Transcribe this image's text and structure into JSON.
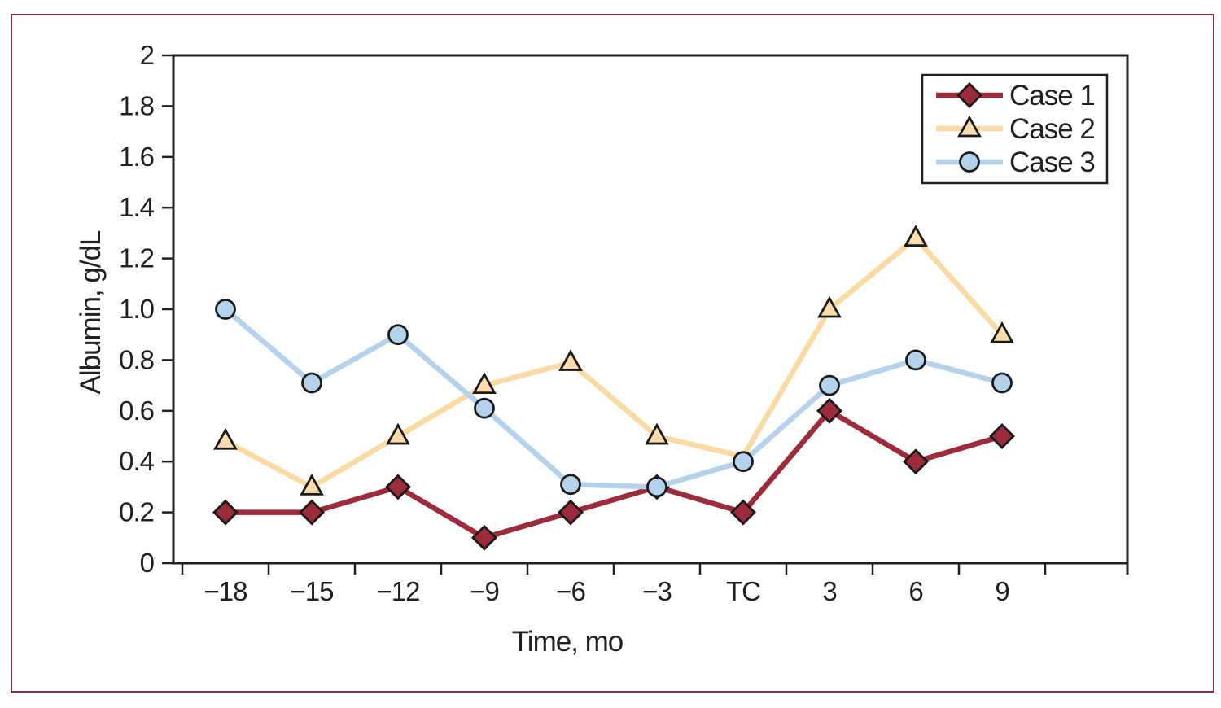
{
  "figure": {
    "border_color": "#8b2e4a",
    "background": "#ffffff"
  },
  "chart_data": {
    "type": "line",
    "title": "",
    "xlabel": "Time, mo",
    "ylabel": "Albumin, g/dL",
    "x_categories": [
      "−18",
      "−15",
      "−12",
      "−9",
      "−6",
      "−3",
      "TC",
      "3",
      "6",
      "9"
    ],
    "y_tick_labels": [
      "0",
      "0.2",
      "0.4",
      "0.6",
      "0.8",
      "1.0",
      "1.2",
      "1.4",
      "1.6",
      "1.8",
      "2"
    ],
    "ylim": [
      0,
      2
    ],
    "y_tick_step": 0.2,
    "grid": false,
    "legend_position": "top-right",
    "axis_color": "#231f20",
    "marker_outline_color": "#1a1a1a",
    "series": [
      {
        "name": "Case 1",
        "marker": "diamond",
        "color": "#9e2b3b",
        "marker_fill": "#9e2b3b",
        "values": [
          0.2,
          0.2,
          0.3,
          0.1,
          0.2,
          0.3,
          0.2,
          0.6,
          0.4,
          0.5
        ]
      },
      {
        "name": "Case 2",
        "marker": "triangle",
        "color": "#fbd9a3",
        "marker_fill": "#fcdcab",
        "marker_hidden_at": [
          "TC"
        ],
        "values": [
          0.48,
          0.3,
          0.5,
          0.7,
          0.79,
          0.5,
          0.42,
          1.0,
          1.28,
          0.9
        ]
      },
      {
        "name": "Case 3",
        "marker": "circle",
        "color": "#b5d2ed",
        "marker_fill": "#b5d2ed",
        "values": [
          1.0,
          0.71,
          0.9,
          0.61,
          0.31,
          0.3,
          0.4,
          0.7,
          0.8,
          0.71
        ]
      }
    ]
  }
}
